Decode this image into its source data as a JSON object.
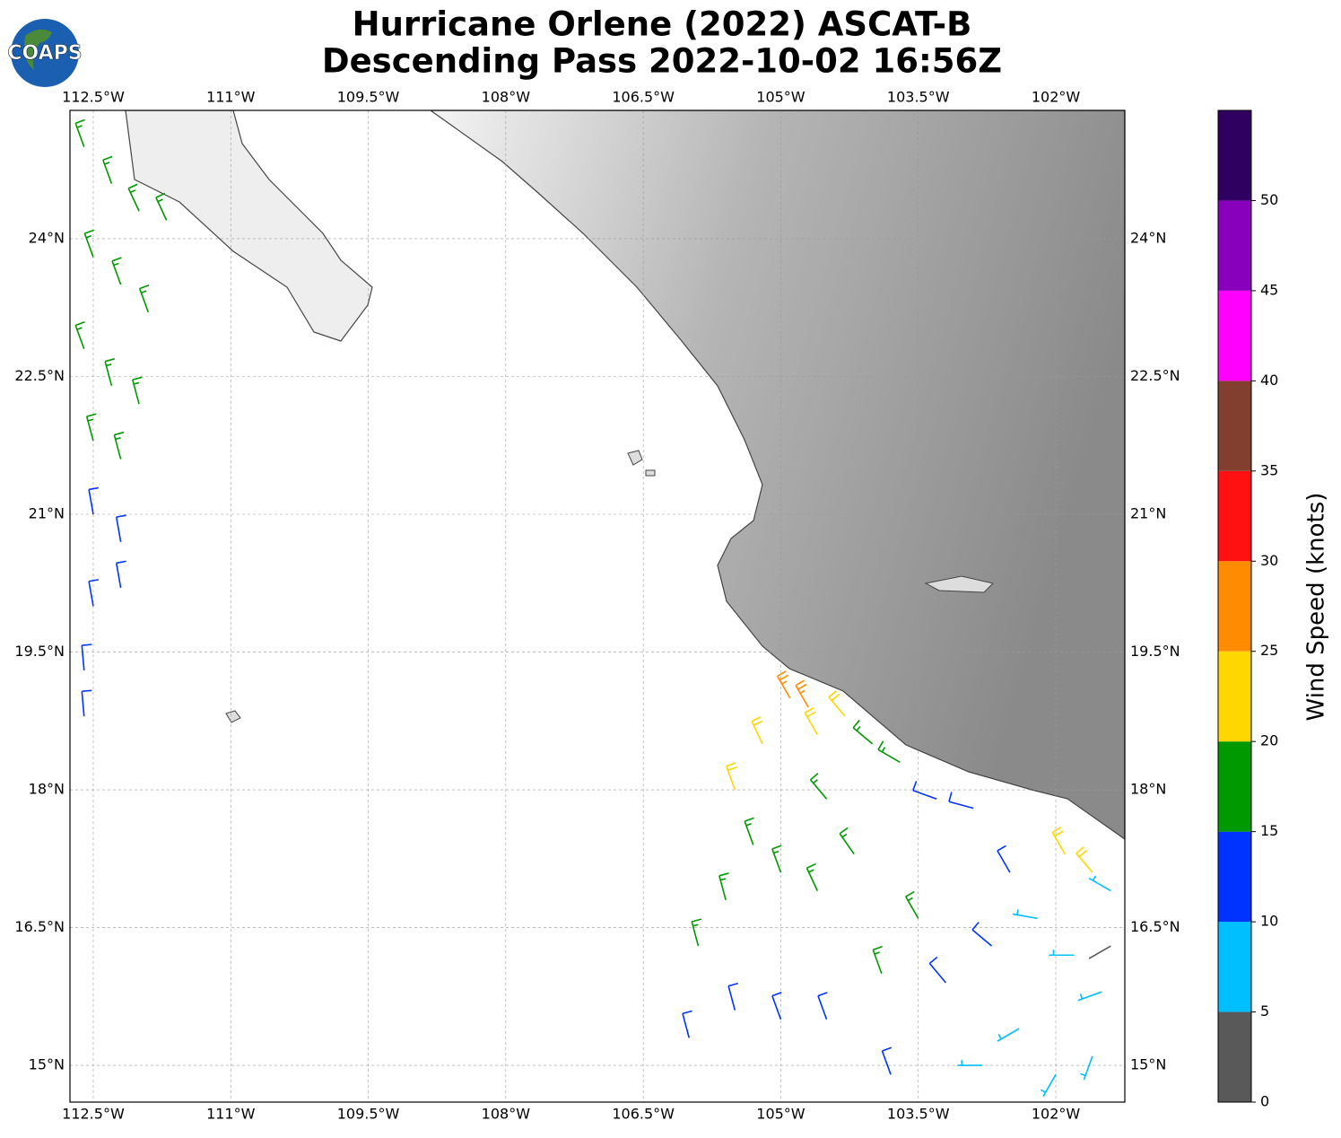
{
  "chart_data": {
    "type": "barbs",
    "title": "Hurricane Orlene (2022) ASCAT-B",
    "subtitle": "Descending Pass 2022-10-02 16:56Z",
    "logo": "COAPS",
    "xlim": [
      -112.754,
      -101.247
    ],
    "ylim": [
      14.6,
      25.397
    ],
    "xticks": [
      {
        "value": -112.5,
        "label": "112.5°W"
      },
      {
        "value": -111,
        "label": "111°W"
      },
      {
        "value": -109.5,
        "label": "109.5°W"
      },
      {
        "value": -108,
        "label": "108°W"
      },
      {
        "value": -106.5,
        "label": "106.5°W"
      },
      {
        "value": -105,
        "label": "105°W"
      },
      {
        "value": -103.5,
        "label": "103.5°W"
      },
      {
        "value": -102,
        "label": "102°W"
      }
    ],
    "yticks": [
      {
        "value": 24,
        "label": "24°N"
      },
      {
        "value": 22.5,
        "label": "22.5°N"
      },
      {
        "value": 21,
        "label": "21°N"
      },
      {
        "value": 19.5,
        "label": "19.5°N"
      },
      {
        "value": 18,
        "label": "18°N"
      },
      {
        "value": 16.5,
        "label": "16.5°N"
      },
      {
        "value": 15,
        "label": "15°N"
      }
    ],
    "grid": true,
    "colorbar": {
      "label": "Wind Speed (knots)",
      "clim": [
        0,
        55
      ],
      "ticks": [
        0,
        5,
        10,
        15,
        20,
        25,
        30,
        35,
        40,
        45,
        50
      ],
      "colors": [
        "#595959",
        "#00bfff",
        "#0033ff",
        "#009900",
        "#ffd700",
        "#ff8c00",
        "#ff1111",
        "#823f2f",
        "#ff00ff",
        "#8800bb",
        "#300060"
      ]
    },
    "barbs": {
      "lon": [
        -112.6,
        -112.3,
        -112.0,
        -111.7,
        -112.5,
        -112.2,
        -111.9,
        -112.6,
        -112.3,
        -112.0,
        -112.5,
        -112.2,
        -112.5,
        -112.2,
        -112.5,
        -112.2,
        -112.6,
        -112.6,
        -104.9,
        -104.7,
        -105.2,
        -104.6,
        -104.3,
        -105.5,
        -104.0,
        -103.7,
        -104.5,
        -105.3,
        -105.0,
        -104.6,
        -104.2,
        -105.6,
        -105.9,
        -103.9,
        -103.5,
        -103.3,
        -102.9,
        -106.0,
        -105.5,
        -105.0,
        -104.5,
        -103.2,
        -102.7,
        -102.5,
        -103.8,
        -102.2,
        -101.8,
        -101.5,
        -102.4,
        -102.0,
        -101.6,
        -102.8,
        -101.4,
        -101.9,
        -101.6,
        -101.4
      ],
      "lat": [
        25.0,
        24.6,
        24.3,
        24.2,
        23.8,
        23.5,
        23.2,
        22.8,
        22.4,
        22.2,
        21.8,
        21.6,
        21.0,
        20.7,
        20.0,
        20.2,
        19.3,
        18.8,
        19.0,
        18.9,
        18.5,
        18.6,
        18.8,
        18.0,
        18.5,
        18.3,
        17.9,
        17.4,
        17.1,
        16.9,
        17.3,
        16.8,
        16.3,
        16.0,
        16.6,
        17.9,
        17.8,
        15.3,
        15.6,
        15.5,
        15.5,
        15.9,
        16.3,
        17.1,
        14.9,
        16.6,
        16.2,
        15.8,
        15.4,
        14.9,
        15.1,
        15.0,
        16.9,
        17.3,
        17.1,
        16.3
      ],
      "speed": [
        17,
        17,
        18,
        17,
        16,
        17,
        16,
        16,
        17,
        16,
        15,
        16,
        13,
        12,
        12,
        11,
        12,
        11,
        27,
        26,
        22,
        21,
        21,
        21,
        17,
        16,
        17,
        18,
        17,
        17,
        16,
        17,
        18,
        16,
        16,
        13,
        12,
        12,
        13,
        12,
        13,
        12,
        11,
        11,
        11,
        8,
        7,
        8,
        9,
        8,
        7,
        9,
        8,
        22,
        21,
        4
      ],
      "direction": [
        340,
        340,
        335,
        335,
        340,
        340,
        340,
        340,
        345,
        345,
        345,
        345,
        350,
        350,
        350,
        350,
        355,
        355,
        330,
        330,
        335,
        330,
        320,
        340,
        310,
        300,
        320,
        340,
        340,
        335,
        325,
        345,
        345,
        340,
        330,
        290,
        285,
        345,
        345,
        340,
        340,
        320,
        310,
        330,
        340,
        280,
        270,
        250,
        240,
        210,
        200,
        270,
        300,
        330,
        320,
        240
      ]
    }
  }
}
